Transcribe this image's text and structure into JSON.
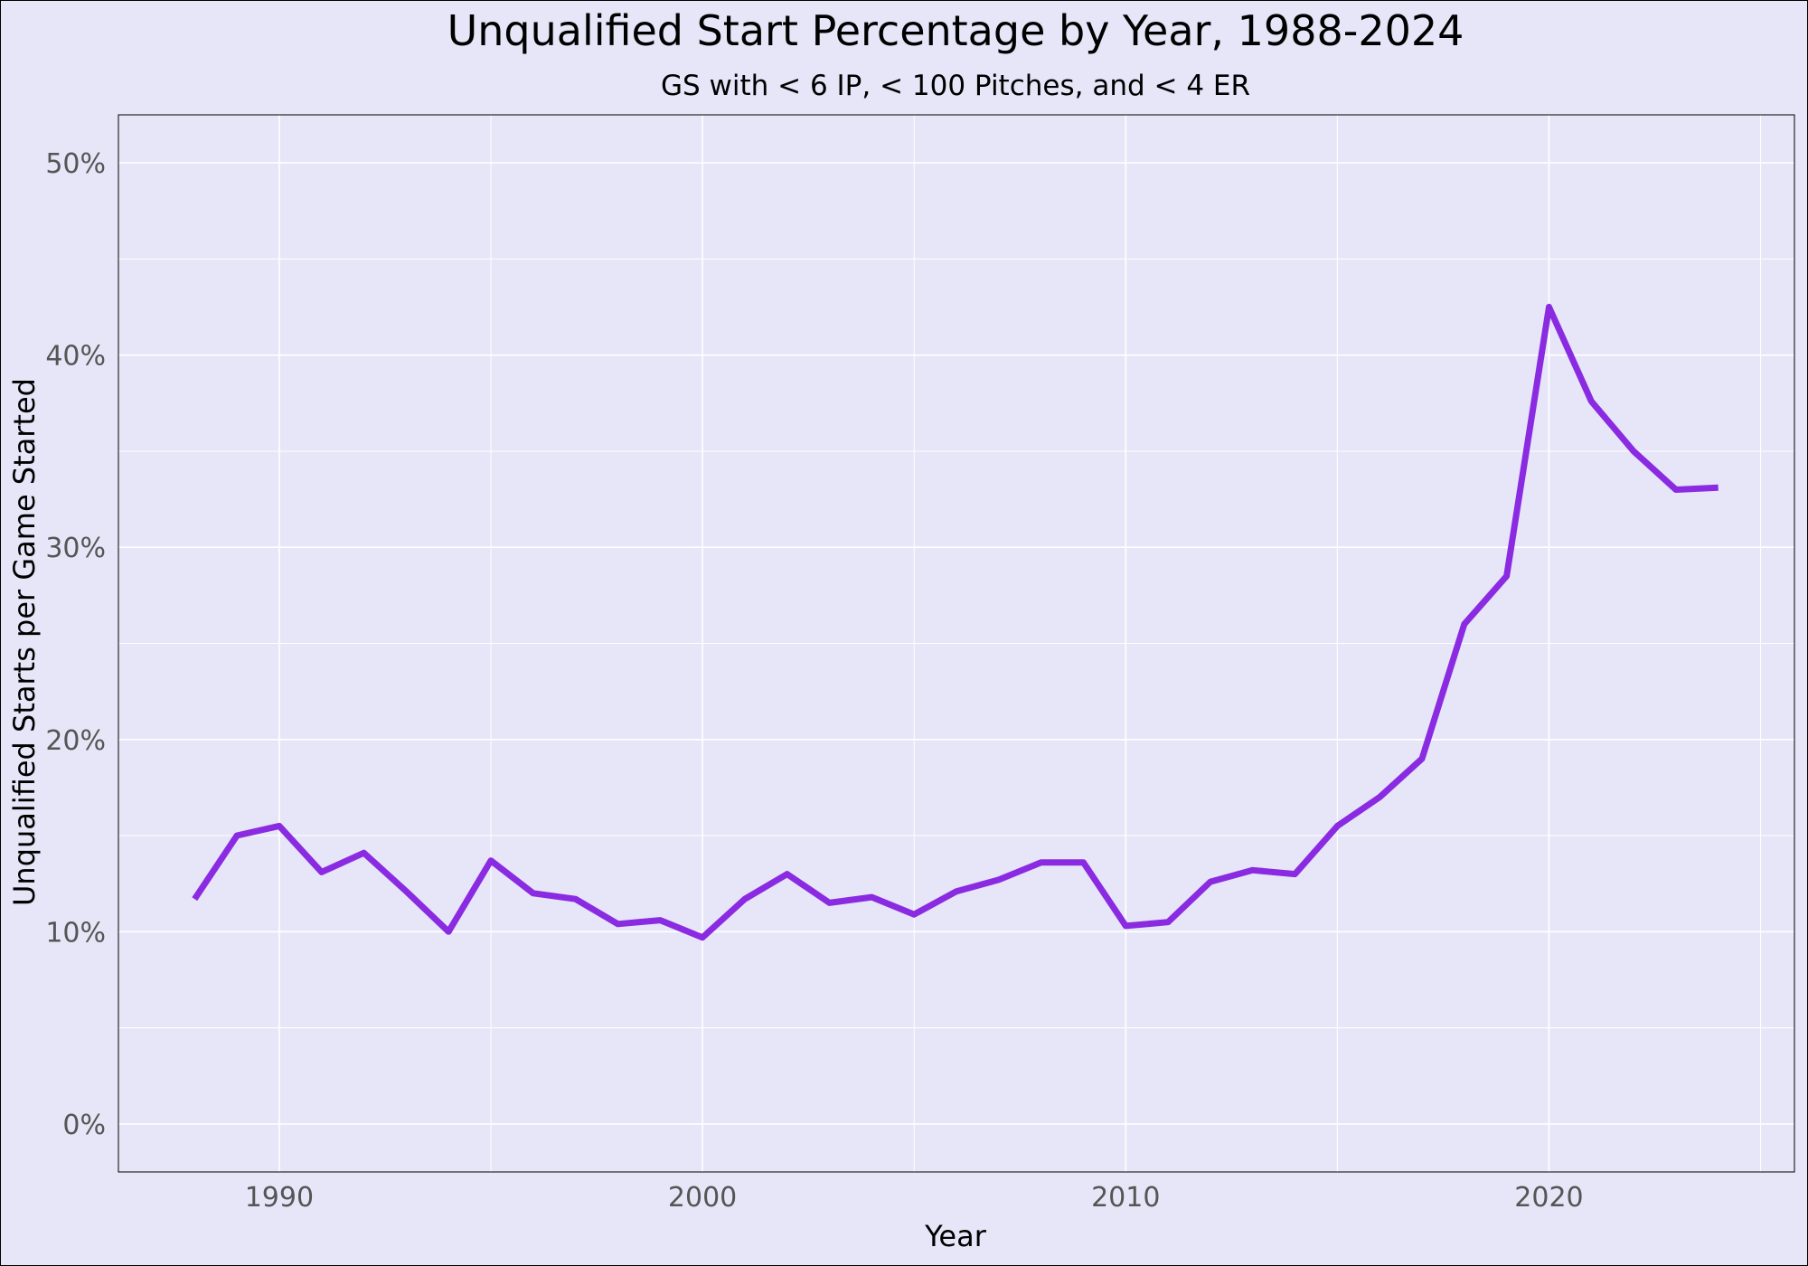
{
  "chart_data": {
    "type": "line",
    "title": "Unqualified Start Percentage by Year, 1988-2024",
    "subtitle": "GS with < 6 IP, < 100 Pitches, and < 4 ER",
    "xlabel": "Year",
    "ylabel": "Unqualified Starts per Game Started",
    "xlim": [
      1986.2,
      2025.8
    ],
    "ylim": [
      -2.5,
      52.5
    ],
    "x_ticks": [
      1990,
      2000,
      2010,
      2020
    ],
    "x_tick_labels": [
      "1990",
      "2000",
      "2010",
      "2020"
    ],
    "y_ticks": [
      0,
      10,
      20,
      30,
      40,
      50
    ],
    "y_tick_labels": [
      "0%",
      "10%",
      "20%",
      "30%",
      "40%",
      "50%"
    ],
    "grid": true,
    "line_color": "#8a2be2",
    "series": [
      {
        "x": [
          1988,
          1989,
          1990,
          1991,
          1992,
          1993,
          1994,
          1995,
          1996,
          1997,
          1998,
          1999,
          2000,
          2001,
          2002,
          2003,
          2004,
          2005,
          2006,
          2007,
          2008,
          2009,
          2010,
          2011,
          2012,
          2013,
          2014,
          2015,
          2016,
          2017,
          2018,
          2019,
          2020,
          2021,
          2022,
          2023,
          2024
        ],
        "values": [
          11.7,
          15.0,
          15.5,
          13.1,
          14.1,
          12.1,
          10.0,
          13.7,
          12.0,
          11.7,
          10.4,
          10.6,
          9.7,
          11.7,
          13.0,
          11.5,
          11.8,
          10.9,
          12.1,
          12.7,
          13.6,
          13.6,
          10.3,
          10.5,
          12.6,
          13.2,
          13.0,
          15.5,
          17.0,
          19.0,
          26.0,
          28.5,
          42.5,
          37.6,
          35.0,
          33.0,
          33.1
        ]
      }
    ]
  }
}
